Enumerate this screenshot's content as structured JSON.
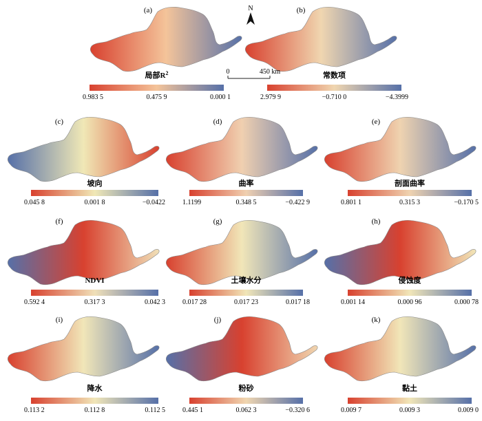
{
  "panels": [
    {
      "label": "(a)",
      "title": "局部R",
      "title_sup": "2",
      "legend": [
        "0.983 5",
        "0.475 9",
        "0.000 1"
      ],
      "stops": [
        "#d8412f",
        "#f4c49a",
        "#5670a8"
      ]
    },
    {
      "label": "(b)",
      "title": "常数项",
      "legend": [
        "2.979 9",
        "−0.710 0",
        "−4.3999"
      ],
      "stops": [
        "#d8412f",
        "#f0d6b0",
        "#5670a8"
      ]
    },
    {
      "label": "(c)",
      "title": "坡向",
      "legend": [
        "0.045 8",
        "0.001 8",
        "−0.0422"
      ],
      "stops": [
        "#d8412f",
        "#f0e8b6",
        "#5670a8"
      ]
    },
    {
      "label": "(d)",
      "title": "曲率",
      "legend": [
        "1.1199",
        "0.348 5",
        "−0.422 9"
      ],
      "stops": [
        "#d8412f",
        "#f0d0b0",
        "#5670a8"
      ]
    },
    {
      "label": "(e)",
      "title": "剖面曲率",
      "legend": [
        "0.801 1",
        "0.315 3",
        "−0.170 5"
      ],
      "stops": [
        "#d8412f",
        "#efd3b0",
        "#5670a8"
      ]
    },
    {
      "label": "(f)",
      "title": "NDVI",
      "legend": [
        "0.592 4",
        "0.317 3",
        "0.042 3"
      ],
      "stops": [
        "#d8412f",
        "#f0e0b8",
        "#5670a8"
      ]
    },
    {
      "label": "(g)",
      "title": "土壤水分",
      "legend": [
        "0.017 28",
        "0.017 23",
        "0.017 18"
      ],
      "stops": [
        "#d8412f",
        "#f1e6b8",
        "#5670a8"
      ]
    },
    {
      "label": "(h)",
      "title": "侵蚀度",
      "legend": [
        "0.001 14",
        "0.000 96",
        "0.000 78"
      ],
      "stops": [
        "#d8412f",
        "#f1e6b8",
        "#5670a8"
      ]
    },
    {
      "label": "(i)",
      "title": "降水",
      "legend": [
        "0.113 2",
        "0.112 8",
        "0.112 5"
      ],
      "stops": [
        "#d8412f",
        "#f1e6b8",
        "#5670a8"
      ]
    },
    {
      "label": "(j)",
      "title": "粉砂",
      "legend": [
        "0.445 1",
        "0.062 3",
        "−0.320 6"
      ],
      "stops": [
        "#d8412f",
        "#f0d6b0",
        "#5670a8"
      ]
    },
    {
      "label": "(k)",
      "title": "黏土",
      "legend": [
        "0.009 7",
        "0.009 3",
        "0.009 0"
      ],
      "stops": [
        "#d8412f",
        "#f1e6b8",
        "#5670a8"
      ]
    }
  ],
  "scale_bar": {
    "start": "0",
    "end": "450 km"
  },
  "north_arrow": {
    "label": "N"
  }
}
